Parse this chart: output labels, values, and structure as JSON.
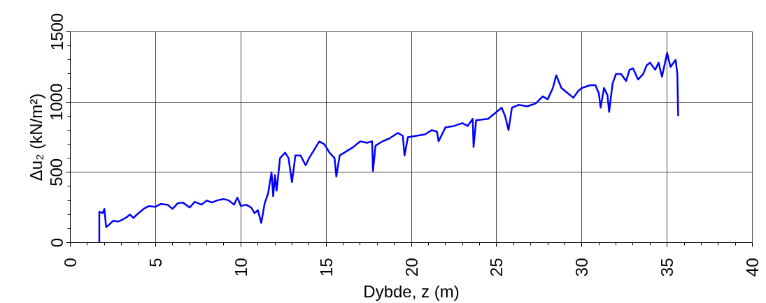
{
  "chart_data": {
    "type": "line",
    "xlabel": "Dybde, z (m)",
    "ylabel": "Δu₂ (kN/m²)",
    "xlim": [
      0,
      40
    ],
    "xticks": [
      0,
      5,
      10,
      15,
      20,
      25,
      30,
      35,
      40
    ],
    "ylim": [
      0,
      1500
    ],
    "yticks": [
      0,
      500,
      1000,
      1500
    ],
    "grid": true,
    "line_style": "solid",
    "series": [
      {
        "color": "#0000ff",
        "x": [
          1.7,
          1.7,
          1.9,
          2.0,
          2.1,
          2.3,
          2.5,
          2.8,
          3.0,
          3.3,
          3.5,
          3.7,
          4.0,
          4.3,
          4.6,
          5.0,
          5.3,
          5.7,
          6.0,
          6.3,
          6.6,
          7.0,
          7.3,
          7.7,
          8.0,
          8.3,
          8.6,
          9.0,
          9.3,
          9.6,
          9.8,
          10.0,
          10.3,
          10.6,
          10.8,
          11.0,
          11.2,
          11.4,
          11.6,
          11.8,
          11.9,
          12.0,
          12.1,
          12.3,
          12.6,
          12.8,
          13.0,
          13.2,
          13.5,
          13.8,
          14.0,
          14.3,
          14.6,
          14.9,
          15.2,
          15.5,
          15.6,
          15.8,
          16.2,
          16.6,
          17.0,
          17.4,
          17.7,
          17.75,
          17.9,
          18.3,
          18.7,
          19.2,
          19.5,
          19.6,
          19.8,
          20.3,
          20.8,
          21.2,
          21.5,
          21.6,
          22.0,
          22.5,
          23.0,
          23.3,
          23.6,
          23.65,
          23.8,
          24.5,
          25.0,
          25.3,
          25.5,
          25.7,
          25.9,
          26.3,
          26.8,
          27.3,
          27.7,
          28.0,
          28.3,
          28.5,
          28.8,
          29.2,
          29.5,
          29.8,
          30.0,
          30.5,
          30.8,
          31.0,
          31.1,
          31.3,
          31.5,
          31.6,
          31.8,
          32.0,
          32.3,
          32.6,
          32.8,
          33.0,
          33.3,
          33.6,
          33.8,
          34.0,
          34.3,
          34.5,
          34.7,
          35.0,
          35.2,
          35.5,
          35.6,
          35.65
        ],
        "values": [
          0,
          220,
          210,
          240,
          110,
          130,
          155,
          150,
          160,
          180,
          200,
          175,
          210,
          240,
          260,
          255,
          275,
          270,
          240,
          280,
          285,
          250,
          290,
          270,
          300,
          285,
          300,
          310,
          300,
          270,
          320,
          260,
          270,
          250,
          210,
          230,
          140,
          280,
          350,
          500,
          330,
          480,
          370,
          600,
          640,
          600,
          430,
          620,
          620,
          550,
          600,
          660,
          720,
          700,
          640,
          600,
          470,
          620,
          650,
          680,
          720,
          710,
          720,
          510,
          690,
          720,
          740,
          780,
          760,
          620,
          750,
          760,
          770,
          800,
          790,
          720,
          820,
          830,
          850,
          830,
          880,
          680,
          870,
          880,
          930,
          960,
          900,
          800,
          960,
          980,
          970,
          990,
          1040,
          1020,
          1100,
          1190,
          1100,
          1060,
          1030,
          1080,
          1100,
          1120,
          1120,
          1060,
          960,
          1100,
          1050,
          930,
          1130,
          1200,
          1200,
          1150,
          1230,
          1240,
          1160,
          1200,
          1260,
          1280,
          1230,
          1280,
          1180,
          1350,
          1250,
          1300,
          1200,
          900
        ]
      }
    ]
  }
}
